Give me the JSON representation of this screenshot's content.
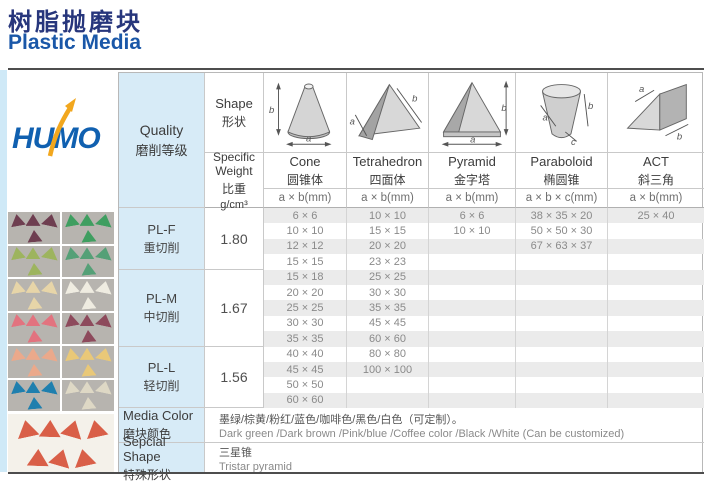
{
  "page": {
    "title_zh": "树脂抛磨块",
    "title_en": "Plastic Media"
  },
  "logo": {
    "text": "HUMO"
  },
  "colors": {
    "title_zh": "#27367c",
    "title_en": "#1a57a8",
    "header_blue_bg": "#d7ebf7",
    "stripe_gray": "#ebebeb",
    "logo_blue": "#1060b0",
    "logo_orange": "#f2a71e",
    "rule_dark": "#4d4d4d"
  },
  "table": {
    "quality_header": {
      "en": "Quality",
      "zh": "磨削等级"
    },
    "shape_header": {
      "en": "Shape",
      "zh": "形状"
    },
    "spec_weight_header": {
      "en": "Specific",
      "en2": "Weight",
      "zh": "比重",
      "unit": "g/cm³"
    },
    "columns": [
      {
        "icon": "cone-icon",
        "name_en": "Cone",
        "name_zh": "圆锥体",
        "dim": "a × b(mm)"
      },
      {
        "icon": "tetrahedron-icon",
        "name_en": "Tetrahedron",
        "name_zh": "四面体",
        "dim": "a × b(mm)"
      },
      {
        "icon": "pyramid-icon",
        "name_en": "Pyramid",
        "name_zh": "金字塔",
        "dim": "a × b(mm)"
      },
      {
        "icon": "paraboloid-icon",
        "name_en": "Paraboloid",
        "name_zh": "椭圆锥",
        "dim": "a × b × c(mm)"
      },
      {
        "icon": "act-icon",
        "name_en": "ACT",
        "name_zh": "斜三角",
        "dim": "a × b(mm)"
      }
    ],
    "quality_groups": [
      {
        "grade": "PL-F",
        "grade_zh": "重切削",
        "specific_weight": "1.80"
      },
      {
        "grade": "PL-M",
        "grade_zh": "中切削",
        "specific_weight": "1.67"
      },
      {
        "grade": "PL-L",
        "grade_zh": "轻切削",
        "specific_weight": "1.56"
      }
    ],
    "size_rows": [
      [
        "6 × 6",
        "10 × 10",
        "6 × 6",
        "38 × 35 × 20",
        "25 × 40"
      ],
      [
        "10 × 10",
        "15 × 15",
        "10 × 10",
        "50 × 50 × 30",
        ""
      ],
      [
        "12 × 12",
        "20 × 20",
        "",
        "67 × 63 × 37",
        ""
      ],
      [
        "15 × 15",
        "23 × 23",
        "",
        "",
        ""
      ],
      [
        "15 × 18",
        "25 × 25",
        "",
        "",
        ""
      ],
      [
        "20 × 20",
        "30 × 30",
        "",
        "",
        ""
      ],
      [
        "25 × 25",
        "35 × 35",
        "",
        "",
        ""
      ],
      [
        "30 × 30",
        "45 × 45",
        "",
        "",
        ""
      ],
      [
        "35 × 35",
        "60 × 60",
        "",
        "",
        ""
      ],
      [
        "40 × 40",
        "80 × 80",
        "",
        "",
        ""
      ],
      [
        "45 × 45",
        "100 × 100",
        "",
        "",
        ""
      ],
      [
        "50 × 50",
        "",
        "",
        "",
        ""
      ],
      [
        "60 × 60",
        "",
        "",
        "",
        ""
      ]
    ],
    "media_color": {
      "label_en": "Media Color",
      "label_zh": "磨块颜色",
      "value_zh": "墨绿/棕黄/粉红/蓝色/咖啡色/黑色/白色（可定制）。",
      "value_en": "Dark green /Dark brown /Pink/blue /Coffee color /Black /White (Can be customized)"
    },
    "special_shape": {
      "label_en": "Sepcial Shape",
      "label_zh": "特殊形状",
      "value_zh": "三星锥",
      "value_en": "Tristar pyramid"
    }
  },
  "photos": {
    "tile_bg": "#b7b4af",
    "tiles": [
      {
        "name": "dark-maroon-pyramids-photo",
        "media_color": "#6e3e50"
      },
      {
        "name": "green-pyramids-photo",
        "media_color": "#3f9e60"
      },
      {
        "name": "olive-green-cones-photo",
        "media_color": "#9db45e"
      },
      {
        "name": "teal-green-pyramids-photo",
        "media_color": "#55a077"
      },
      {
        "name": "cream-cones-photo",
        "media_color": "#e7d5a8"
      },
      {
        "name": "white-cones-photo",
        "media_color": "#efece1"
      },
      {
        "name": "pink-cones-photo",
        "media_color": "#e2737f"
      },
      {
        "name": "maroon-cones-photo",
        "media_color": "#8d4a5c"
      },
      {
        "name": "peach-cones-photo",
        "media_color": "#eba98b"
      },
      {
        "name": "yellow-cones-photo",
        "media_color": "#e9c878"
      },
      {
        "name": "teal-blue-cones-photo",
        "media_color": "#1f7fae"
      },
      {
        "name": "beige-pyramids-photo",
        "media_color": "#ded8c5"
      }
    ],
    "wide": {
      "name": "red-tetrahedron-photo",
      "media_color": "#d95f48",
      "bg": "#f4f1ea"
    }
  }
}
